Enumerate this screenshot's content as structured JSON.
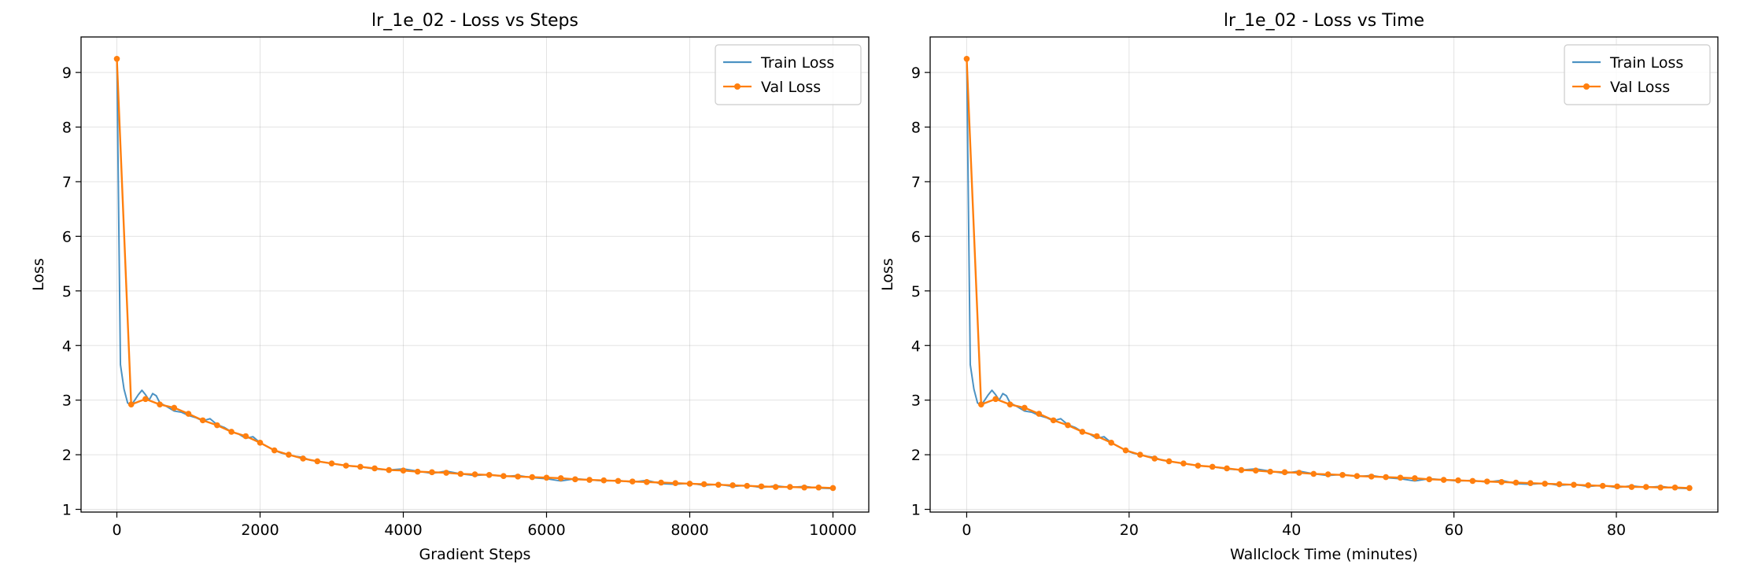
{
  "colors": {
    "train": "#1f77b4",
    "val": "#ff7f0e",
    "grid": "#b0b0b0"
  },
  "chart_data": [
    {
      "type": "line",
      "title": "lr_1e_02 - Loss vs Steps",
      "xlabel": "Gradient Steps",
      "ylabel": "Loss",
      "xlim": [
        -500,
        10500
      ],
      "ylim": [
        0.95,
        9.65
      ],
      "xticks": [
        0,
        2000,
        4000,
        6000,
        8000,
        10000
      ],
      "xtick_labels": [
        "0",
        "2000",
        "4000",
        "6000",
        "8000",
        "10000"
      ],
      "yticks": [
        1,
        2,
        3,
        4,
        5,
        6,
        7,
        8,
        9
      ],
      "ytick_labels": [
        "1",
        "2",
        "3",
        "4",
        "5",
        "6",
        "7",
        "8",
        "9"
      ],
      "grid": true,
      "legend_position": "top-right",
      "series": [
        {
          "name": "Train Loss",
          "x": [
            0,
            50,
            100,
            150,
            200,
            250,
            300,
            350,
            400,
            450,
            500,
            550,
            600,
            700,
            800,
            900,
            1000,
            1100,
            1200,
            1300,
            1400,
            1500,
            1600,
            1700,
            1800,
            1900,
            2000,
            2100,
            2200,
            2300,
            2400,
            2500,
            2600,
            2700,
            2800,
            2900,
            3000,
            3200,
            3400,
            3600,
            3800,
            4000,
            4200,
            4400,
            4600,
            4800,
            5000,
            5200,
            5400,
            5600,
            5800,
            6000,
            6200,
            6400,
            6600,
            6800,
            7000,
            7200,
            7400,
            7600,
            7800,
            8000,
            8200,
            8400,
            8600,
            8800,
            9000,
            9200,
            9400,
            9600,
            9800,
            10000
          ],
          "y": [
            9.25,
            3.65,
            3.2,
            2.95,
            2.9,
            3.0,
            3.1,
            3.18,
            3.1,
            3.0,
            3.12,
            3.08,
            2.95,
            2.88,
            2.8,
            2.78,
            2.72,
            2.68,
            2.62,
            2.66,
            2.55,
            2.5,
            2.42,
            2.38,
            2.3,
            2.33,
            2.22,
            2.15,
            2.08,
            2.03,
            2.0,
            1.97,
            1.95,
            1.9,
            1.88,
            1.86,
            1.84,
            1.8,
            1.78,
            1.74,
            1.72,
            1.74,
            1.7,
            1.66,
            1.7,
            1.65,
            1.62,
            1.64,
            1.6,
            1.62,
            1.58,
            1.56,
            1.52,
            1.56,
            1.54,
            1.52,
            1.53,
            1.5,
            1.53,
            1.47,
            1.46,
            1.48,
            1.44,
            1.46,
            1.42,
            1.44,
            1.4,
            1.43,
            1.4,
            1.42,
            1.39,
            1.38
          ]
        },
        {
          "name": "Val Loss",
          "x": [
            0,
            200,
            400,
            600,
            800,
            1000,
            1200,
            1400,
            1600,
            1800,
            2000,
            2200,
            2400,
            2600,
            2800,
            3000,
            3200,
            3400,
            3600,
            3800,
            4000,
            4200,
            4400,
            4600,
            4800,
            5000,
            5200,
            5400,
            5600,
            5800,
            6000,
            6200,
            6400,
            6600,
            6800,
            7000,
            7200,
            7400,
            7600,
            7800,
            8000,
            8200,
            8400,
            8600,
            8800,
            9000,
            9200,
            9400,
            9600,
            9800,
            10000
          ],
          "y": [
            9.25,
            2.92,
            3.02,
            2.92,
            2.86,
            2.75,
            2.63,
            2.54,
            2.42,
            2.34,
            2.22,
            2.08,
            2.0,
            1.93,
            1.88,
            1.84,
            1.8,
            1.78,
            1.75,
            1.72,
            1.71,
            1.69,
            1.68,
            1.67,
            1.65,
            1.64,
            1.63,
            1.61,
            1.6,
            1.59,
            1.58,
            1.57,
            1.55,
            1.54,
            1.53,
            1.52,
            1.51,
            1.5,
            1.49,
            1.48,
            1.47,
            1.46,
            1.45,
            1.44,
            1.43,
            1.42,
            1.41,
            1.41,
            1.4,
            1.4,
            1.39
          ]
        }
      ]
    },
    {
      "type": "line",
      "title": "lr_1e_02 - Loss vs Time",
      "xlabel": "Wallclock Time (minutes)",
      "ylabel": "Loss",
      "xlim": [
        -4.5,
        92.5
      ],
      "ylim": [
        0.95,
        9.65
      ],
      "xticks": [
        0,
        20,
        40,
        60,
        80
      ],
      "xtick_labels": [
        "0",
        "20",
        "40",
        "60",
        "80"
      ],
      "yticks": [
        1,
        2,
        3,
        4,
        5,
        6,
        7,
        8,
        9
      ],
      "ytick_labels": [
        "1",
        "2",
        "3",
        "4",
        "5",
        "6",
        "7",
        "8",
        "9"
      ],
      "grid": true,
      "legend_position": "top-right",
      "series": [
        {
          "name": "Train Loss",
          "x": [
            0,
            0.44,
            0.89,
            1.33,
            1.78,
            2.22,
            2.67,
            3.11,
            3.56,
            4.0,
            4.45,
            4.89,
            5.34,
            6.23,
            7.12,
            8.01,
            8.9,
            9.79,
            10.68,
            11.57,
            12.46,
            13.35,
            14.24,
            15.13,
            16.02,
            16.91,
            17.8,
            18.69,
            19.58,
            20.47,
            21.36,
            22.25,
            23.14,
            24.03,
            24.92,
            25.81,
            26.7,
            28.48,
            30.26,
            32.04,
            33.82,
            35.6,
            37.38,
            39.16,
            40.94,
            42.72,
            44.5,
            46.28,
            48.06,
            49.84,
            51.62,
            53.4,
            55.18,
            56.96,
            58.74,
            60.52,
            62.3,
            64.08,
            65.86,
            67.64,
            69.42,
            71.2,
            72.98,
            74.76,
            76.54,
            78.32,
            80.1,
            81.88,
            83.66,
            85.44,
            87.22,
            89.0
          ],
          "y": [
            9.25,
            3.65,
            3.2,
            2.95,
            2.9,
            3.0,
            3.1,
            3.18,
            3.1,
            3.0,
            3.12,
            3.08,
            2.95,
            2.88,
            2.8,
            2.78,
            2.72,
            2.68,
            2.62,
            2.66,
            2.55,
            2.5,
            2.42,
            2.38,
            2.3,
            2.33,
            2.22,
            2.15,
            2.08,
            2.03,
            2.0,
            1.97,
            1.95,
            1.9,
            1.88,
            1.86,
            1.84,
            1.8,
            1.78,
            1.74,
            1.72,
            1.74,
            1.7,
            1.66,
            1.7,
            1.65,
            1.62,
            1.64,
            1.6,
            1.62,
            1.58,
            1.56,
            1.52,
            1.56,
            1.54,
            1.52,
            1.53,
            1.5,
            1.53,
            1.47,
            1.46,
            1.48,
            1.44,
            1.46,
            1.42,
            1.44,
            1.4,
            1.43,
            1.4,
            1.42,
            1.39,
            1.38
          ]
        },
        {
          "name": "Val Loss",
          "x": [
            0,
            1.78,
            3.56,
            5.34,
            7.12,
            8.9,
            10.68,
            12.46,
            14.24,
            16.02,
            17.8,
            19.58,
            21.36,
            23.14,
            24.92,
            26.7,
            28.48,
            30.26,
            32.04,
            33.82,
            35.6,
            37.38,
            39.16,
            40.94,
            42.72,
            44.5,
            46.28,
            48.06,
            49.84,
            51.62,
            53.4,
            55.18,
            56.96,
            58.74,
            60.52,
            62.3,
            64.08,
            65.86,
            67.64,
            69.42,
            71.2,
            72.98,
            74.76,
            76.54,
            78.32,
            80.1,
            81.88,
            83.66,
            85.44,
            87.22,
            89.0
          ],
          "y": [
            9.25,
            2.92,
            3.02,
            2.92,
            2.86,
            2.75,
            2.63,
            2.54,
            2.42,
            2.34,
            2.22,
            2.08,
            2.0,
            1.93,
            1.88,
            1.84,
            1.8,
            1.78,
            1.75,
            1.72,
            1.71,
            1.69,
            1.68,
            1.67,
            1.65,
            1.64,
            1.63,
            1.61,
            1.6,
            1.59,
            1.58,
            1.57,
            1.55,
            1.54,
            1.53,
            1.52,
            1.51,
            1.5,
            1.49,
            1.48,
            1.47,
            1.46,
            1.45,
            1.44,
            1.43,
            1.42,
            1.41,
            1.41,
            1.4,
            1.4,
            1.39
          ]
        }
      ]
    }
  ]
}
